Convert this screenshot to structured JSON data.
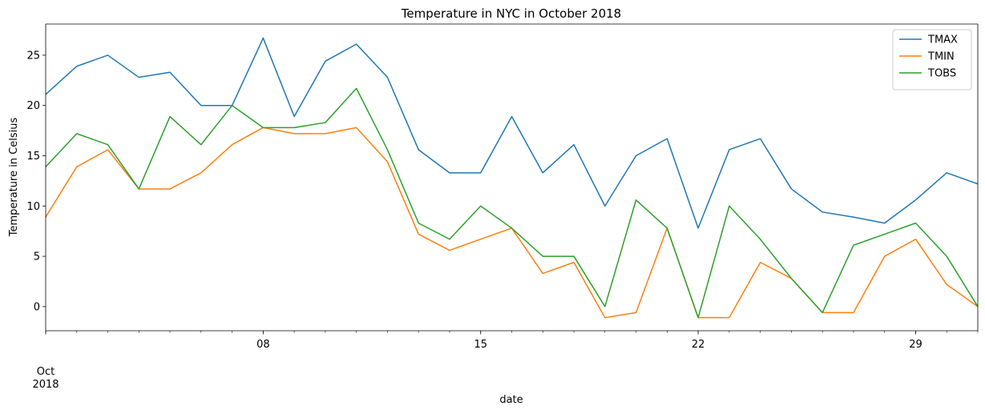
{
  "chart_data": {
    "type": "line",
    "title": "Temperature in NYC in October 2018",
    "xlabel": "date",
    "ylabel": "Temperature in Celsius",
    "x": [
      "2018-10-01",
      "2018-10-02",
      "2018-10-03",
      "2018-10-04",
      "2018-10-05",
      "2018-10-06",
      "2018-10-07",
      "2018-10-08",
      "2018-10-09",
      "2018-10-10",
      "2018-10-11",
      "2018-10-12",
      "2018-10-13",
      "2018-10-14",
      "2018-10-15",
      "2018-10-16",
      "2018-10-17",
      "2018-10-18",
      "2018-10-19",
      "2018-10-20",
      "2018-10-21",
      "2018-10-22",
      "2018-10-23",
      "2018-10-24",
      "2018-10-25",
      "2018-10-26",
      "2018-10-27",
      "2018-10-28",
      "2018-10-29",
      "2018-10-30",
      "2018-10-31"
    ],
    "xlim": [
      "2018-10-01",
      "2018-10-31"
    ],
    "ylim": [
      -2.4,
      28.1
    ],
    "major_x_ticks": [
      {
        "date": "2018-10-01",
        "label": "Oct",
        "sublabel": "2018"
      },
      {
        "date": "2018-10-08",
        "label": "08"
      },
      {
        "date": "2018-10-15",
        "label": "15"
      },
      {
        "date": "2018-10-22",
        "label": "22"
      },
      {
        "date": "2018-10-29",
        "label": "29"
      }
    ],
    "y_ticks": [
      0,
      5,
      10,
      15,
      20,
      25
    ],
    "grid": false,
    "legend": "top-right",
    "series": [
      {
        "name": "TMAX",
        "color": "#1f77b4",
        "values": [
          21.1,
          23.9,
          25.0,
          22.8,
          23.3,
          20.0,
          20.0,
          26.7,
          18.9,
          24.4,
          26.1,
          22.8,
          15.6,
          13.3,
          13.3,
          18.9,
          13.3,
          16.1,
          10.0,
          15.0,
          16.7,
          7.8,
          15.6,
          16.7,
          11.7,
          9.4,
          8.9,
          8.3,
          10.6,
          13.3,
          12.2
        ]
      },
      {
        "name": "TMIN",
        "color": "#ff7f0e",
        "values": [
          8.9,
          13.9,
          15.6,
          11.7,
          11.7,
          13.3,
          16.1,
          17.8,
          17.2,
          17.2,
          17.8,
          14.4,
          7.2,
          5.6,
          6.7,
          7.8,
          3.3,
          4.4,
          -1.1,
          -0.6,
          7.8,
          -1.1,
          -1.1,
          4.4,
          2.8,
          -0.6,
          -0.6,
          5.0,
          6.7,
          2.2,
          0.0
        ]
      },
      {
        "name": "TOBS",
        "color": "#2ca02c",
        "values": [
          13.9,
          17.2,
          16.1,
          11.7,
          18.9,
          16.1,
          20.0,
          17.8,
          17.8,
          18.3,
          21.7,
          15.6,
          8.3,
          6.7,
          10.0,
          7.8,
          5.0,
          5.0,
          0.0,
          10.6,
          7.8,
          -1.1,
          10.0,
          6.7,
          2.8,
          -0.6,
          6.1,
          7.2,
          8.3,
          5.0,
          0.0
        ]
      }
    ]
  }
}
